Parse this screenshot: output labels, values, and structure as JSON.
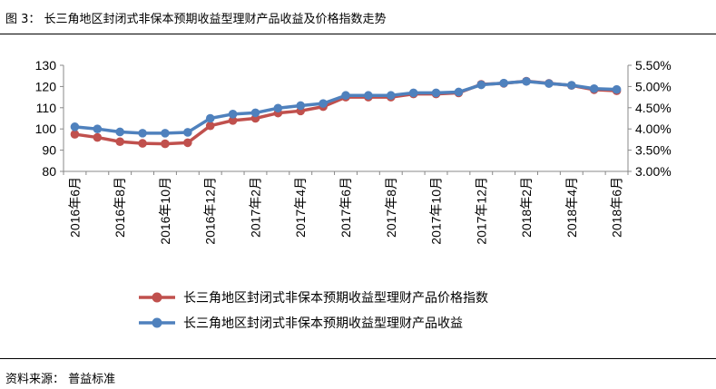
{
  "caption": "图 3： 长三角地区封闭式非保本预期收益型理财产品收益及价格指数走势",
  "source": "资料来源： 普益标准",
  "chart_data": {
    "type": "line",
    "x": [
      "2016年6月",
      "2016年7月",
      "2016年8月",
      "2016年9月",
      "2016年10月",
      "2016年11月",
      "2016年12月",
      "2017年1月",
      "2017年2月",
      "2017年3月",
      "2017年4月",
      "2017年5月",
      "2017年6月",
      "2017年7月",
      "2017年8月",
      "2017年9月",
      "2017年10月",
      "2017年11月",
      "2017年12月",
      "2018年1月",
      "2018年2月",
      "2018年3月",
      "2018年4月",
      "2018年5月",
      "2018年6月"
    ],
    "xtick_labels": [
      "2016年6月",
      "2016年8月",
      "2016年10月",
      "2016年12月",
      "2017年2月",
      "2017年4月",
      "2017年6月",
      "2017年8月",
      "2017年10月",
      "2017年12月",
      "2018年2月",
      "2018年4月",
      "2018年6月"
    ],
    "left_axis": {
      "ylim": [
        80,
        130
      ],
      "ticks": [
        "80",
        "90",
        "100",
        "110",
        "120",
        "130"
      ]
    },
    "right_axis": {
      "ylim": [
        3.0,
        5.5
      ],
      "ticks": [
        "3.00%",
        "3.50%",
        "4.00%",
        "4.50%",
        "5.00%",
        "5.50%"
      ]
    },
    "series": [
      {
        "name": "长三角地区封闭式非保本预期收益型理财产品价格指数",
        "axis": "left",
        "color": "#C0504D",
        "values": [
          97.5,
          96,
          94,
          93.2,
          93,
          93.5,
          101.5,
          104,
          105,
          107.5,
          108.5,
          110.5,
          115,
          115,
          115,
          116.5,
          116.5,
          117,
          121,
          121.5,
          122.5,
          121.5,
          120.5,
          118.5,
          118
        ]
      },
      {
        "name": "长三角地区封闭式非保本预期收益型理财产品收益",
        "axis": "right",
        "color": "#4F81BD",
        "values": [
          4.05,
          4.0,
          3.93,
          3.9,
          3.9,
          3.92,
          4.25,
          4.35,
          4.38,
          4.49,
          4.55,
          4.6,
          4.79,
          4.79,
          4.79,
          4.85,
          4.85,
          4.87,
          5.04,
          5.08,
          5.12,
          5.07,
          5.03,
          4.95,
          4.93
        ]
      }
    ]
  }
}
